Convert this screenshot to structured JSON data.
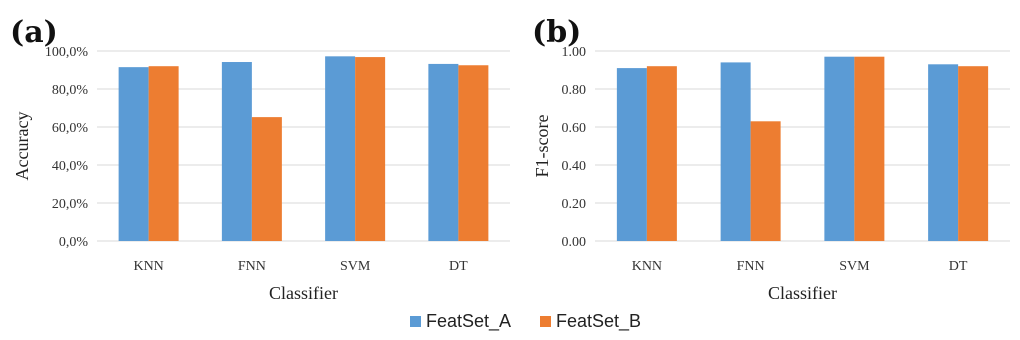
{
  "colors": {
    "series_a": "#5b9bd5",
    "series_b": "#ed7d31",
    "grid": "#d9d9d9"
  },
  "legend": {
    "items": [
      "FeatSet_A",
      "FeatSet_B"
    ],
    "placement": "bottom-center"
  },
  "chart_data": [
    {
      "panel": "(a)",
      "type": "bar",
      "xlabel": "Classifier",
      "ylabel": "Accuracy",
      "categories": [
        "KNN",
        "FNN",
        "SVM",
        "DT"
      ],
      "series": [
        {
          "name": "FeatSet_A",
          "values": [
            91.5,
            94.2,
            97.2,
            93.2
          ]
        },
        {
          "name": "FeatSet_B",
          "values": [
            92.0,
            65.2,
            96.8,
            92.5
          ]
        }
      ],
      "ylim": [
        0,
        100
      ],
      "yticks": [
        "0,0%",
        "20,0%",
        "40,0%",
        "60,0%",
        "80,0%",
        "100,0%"
      ],
      "grid": true
    },
    {
      "panel": "(b)",
      "type": "bar",
      "xlabel": "Classifier",
      "ylabel": "F1-score",
      "categories": [
        "KNN",
        "FNN",
        "SVM",
        "DT"
      ],
      "series": [
        {
          "name": "FeatSet_A",
          "values": [
            0.91,
            0.94,
            0.97,
            0.93
          ]
        },
        {
          "name": "FeatSet_B",
          "values": [
            0.92,
            0.63,
            0.97,
            0.92
          ]
        }
      ],
      "ylim": [
        0,
        1
      ],
      "yticks": [
        "0.00",
        "0.20",
        "0.40",
        "0.60",
        "0.80",
        "1.00"
      ],
      "grid": true
    }
  ]
}
